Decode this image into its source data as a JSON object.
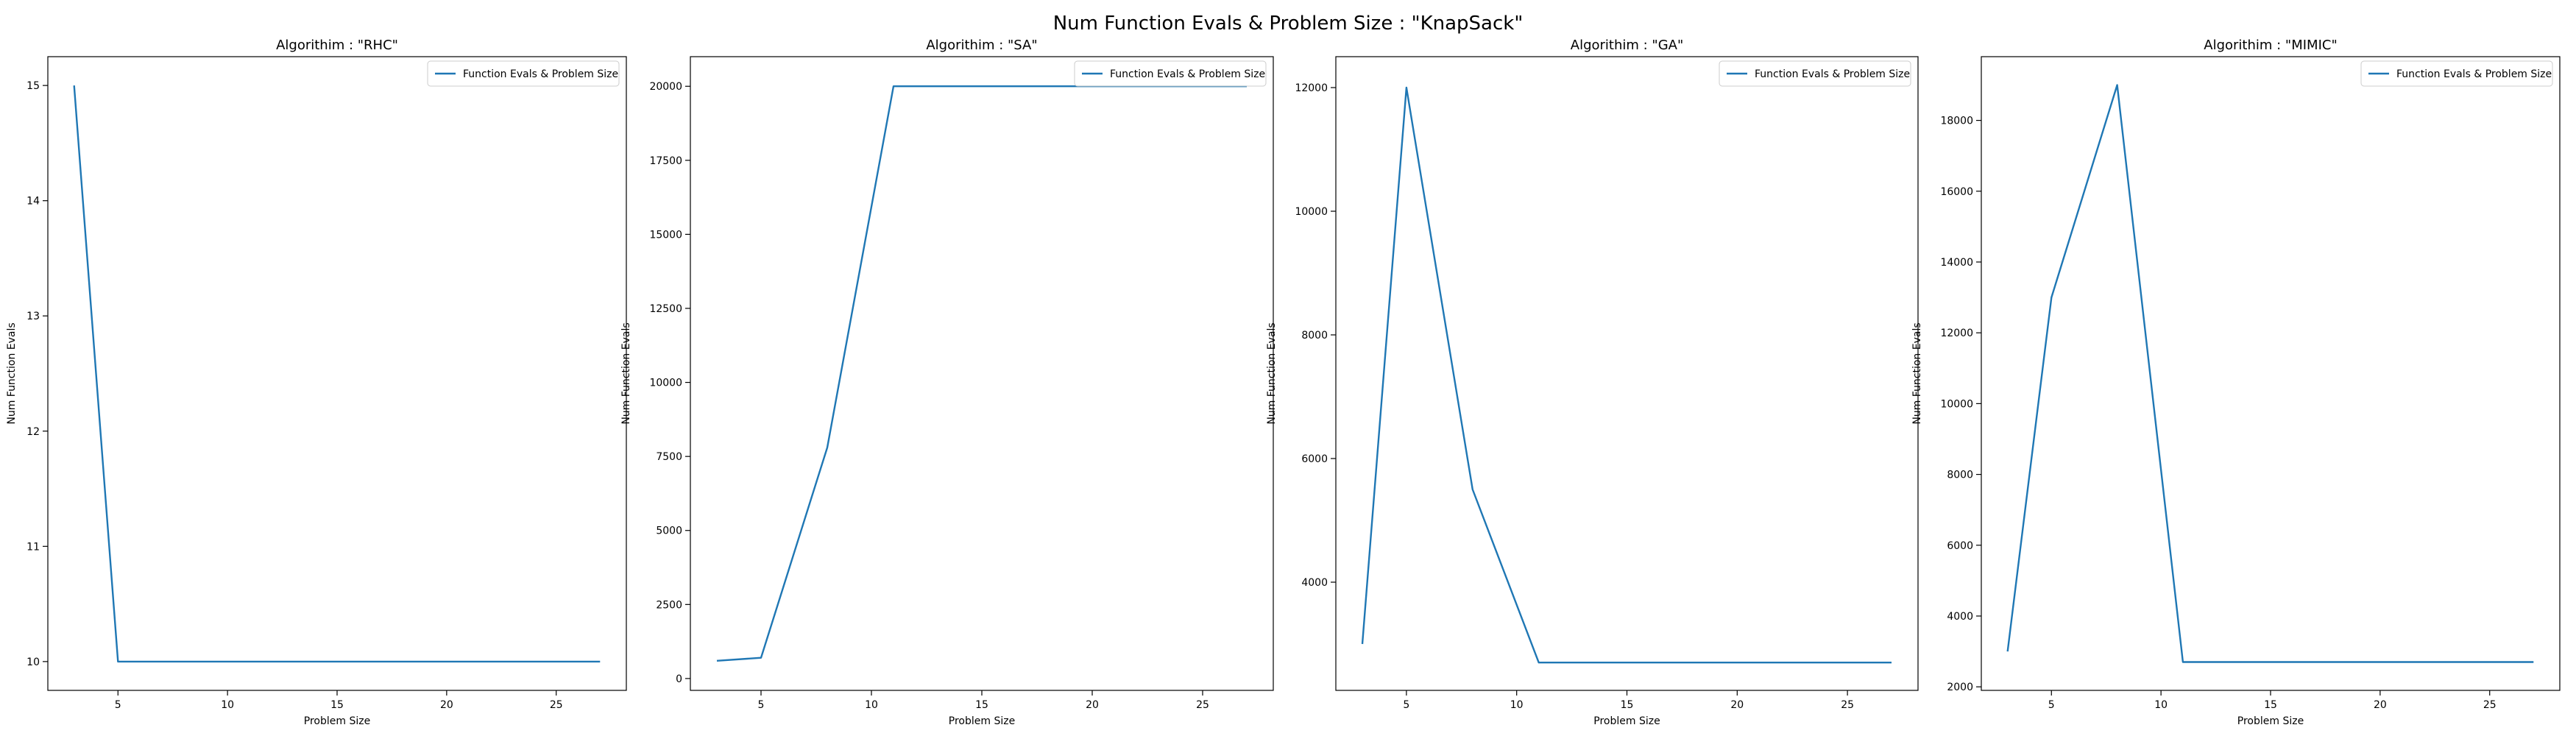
{
  "figure": {
    "suptitle": "Num Function Evals & Problem Size : \"KnapSack\"",
    "line_color": "#1f77b4"
  },
  "chart_data": [
    {
      "type": "line",
      "title": "Algorithim : \"RHC\"",
      "xlabel": "Problem Size",
      "ylabel": "Num Function Evals",
      "legend": "top-right",
      "grid": false,
      "xlim": [
        1.8,
        28.2
      ],
      "ylim": [
        9.75,
        15.25
      ],
      "xticks": [
        5,
        10,
        15,
        20,
        25
      ],
      "yticks": [
        10,
        11,
        12,
        13,
        14,
        15
      ],
      "series": [
        {
          "name": "Function Evals & Problem Size",
          "x": [
            3,
            5,
            8,
            11,
            14,
            17,
            20,
            23,
            27
          ],
          "y": [
            15,
            10,
            10,
            10,
            10,
            10,
            10,
            10,
            10
          ]
        }
      ]
    },
    {
      "type": "line",
      "title": "Algorithim : \"SA\"",
      "xlabel": "Problem Size",
      "ylabel": "Num Function Evals",
      "legend": "top-right",
      "grid": false,
      "xlim": [
        1.8,
        28.2
      ],
      "ylim": [
        -400,
        21000
      ],
      "xticks": [
        5,
        10,
        15,
        20,
        25
      ],
      "yticks": [
        0,
        2500,
        5000,
        7500,
        10000,
        12500,
        15000,
        17500,
        20000
      ],
      "series": [
        {
          "name": "Function Evals & Problem Size",
          "x": [
            3,
            5,
            8,
            11,
            14,
            17,
            20,
            23,
            27
          ],
          "y": [
            600,
            700,
            7800,
            20000,
            20000,
            20000,
            20000,
            20000,
            20000
          ]
        }
      ]
    },
    {
      "type": "line",
      "title": "Algorithim : \"GA\"",
      "xlabel": "Problem Size",
      "ylabel": "Num Function Evals",
      "legend": "top-right",
      "grid": false,
      "xlim": [
        1.8,
        28.2
      ],
      "ylim": [
        2250,
        12500
      ],
      "xticks": [
        5,
        10,
        15,
        20,
        25
      ],
      "yticks": [
        4000,
        6000,
        8000,
        10000,
        12000
      ],
      "series": [
        {
          "name": "Function Evals & Problem Size",
          "x": [
            3,
            5,
            8,
            11,
            14,
            17,
            20,
            23,
            27
          ],
          "y": [
            3000,
            12000,
            5500,
            2700,
            2700,
            2700,
            2700,
            2700,
            2700
          ]
        }
      ]
    },
    {
      "type": "line",
      "title": "Algorithim : \"MIMIC\"",
      "xlabel": "Problem Size",
      "ylabel": "Num Function Evals",
      "legend": "top-right",
      "grid": false,
      "xlim": [
        1.8,
        28.2
      ],
      "ylim": [
        1900,
        19800
      ],
      "xticks": [
        5,
        10,
        15,
        20,
        25
      ],
      "yticks": [
        2000,
        4000,
        6000,
        8000,
        10000,
        12000,
        14000,
        16000,
        18000
      ],
      "series": [
        {
          "name": "Function Evals & Problem Size",
          "x": [
            3,
            5,
            8,
            11,
            14,
            17,
            20,
            23,
            27
          ],
          "y": [
            3000,
            13000,
            19000,
            2700,
            2700,
            2700,
            2700,
            2700,
            2700
          ]
        }
      ]
    }
  ]
}
